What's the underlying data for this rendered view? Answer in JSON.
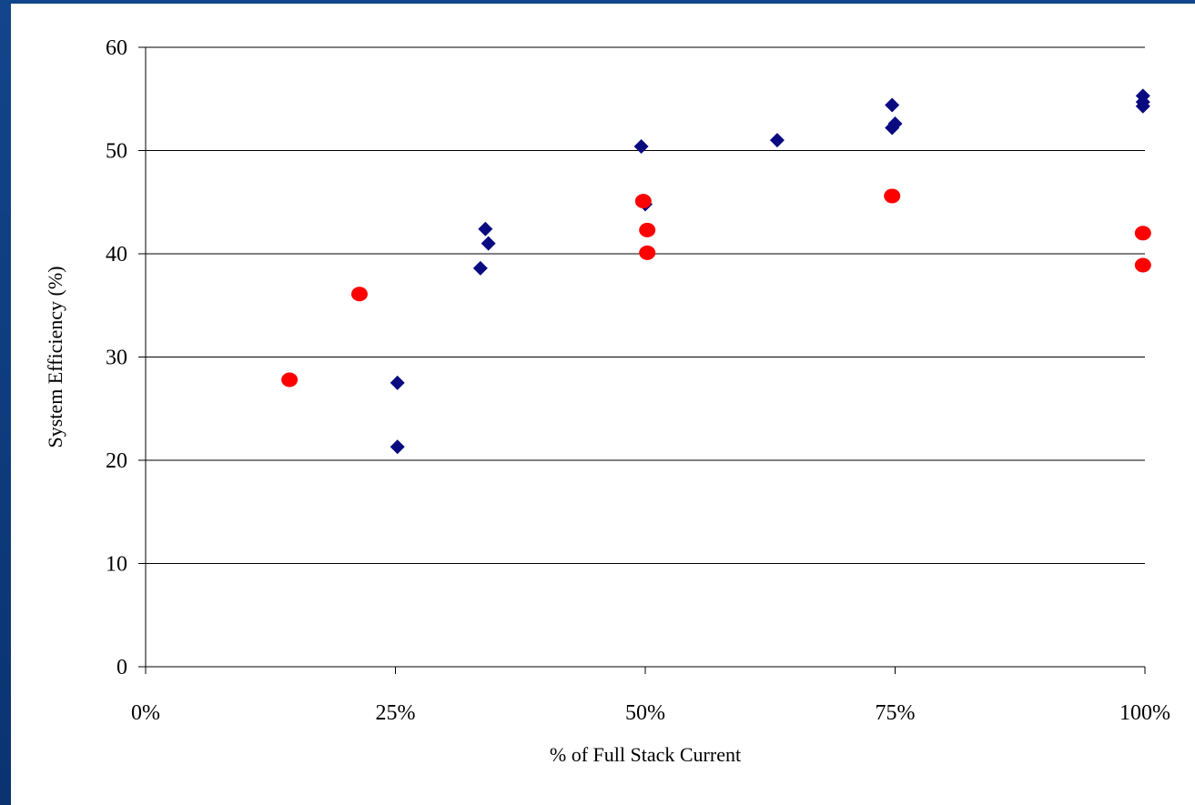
{
  "chart_data": {
    "type": "scatter",
    "title": "",
    "xlabel": "% of Full Stack Current",
    "ylabel": "System Efficiency (%)",
    "xlim": [
      0,
      100
    ],
    "ylim": [
      0,
      60
    ],
    "x_ticks": [
      0,
      25,
      50,
      75,
      100
    ],
    "x_tick_labels": [
      "0%",
      "25%",
      "50%",
      "75%",
      "100%"
    ],
    "y_ticks": [
      0,
      10,
      20,
      30,
      40,
      50,
      60
    ],
    "y_tick_labels": [
      "0",
      "10",
      "20",
      "30",
      "40",
      "50",
      "60"
    ],
    "grid": "horizontal",
    "legend": "none",
    "series": [
      {
        "marker": "diamond",
        "color": "#0a0a80",
        "points": [
          [
            25.2,
            27.5
          ],
          [
            25.2,
            21.3
          ],
          [
            33.5,
            38.6
          ],
          [
            34.0,
            42.4
          ],
          [
            34.3,
            41.0
          ],
          [
            49.6,
            50.4
          ],
          [
            50.0,
            44.8
          ],
          [
            63.2,
            51.0
          ],
          [
            74.7,
            54.4
          ],
          [
            74.7,
            52.2
          ],
          [
            75.0,
            52.6
          ],
          [
            99.8,
            55.3
          ],
          [
            99.8,
            54.7
          ],
          [
            99.8,
            54.3
          ]
        ]
      },
      {
        "marker": "circle",
        "color": "#ff0000",
        "points": [
          [
            14.4,
            27.8
          ],
          [
            21.4,
            36.1
          ],
          [
            49.8,
            45.1
          ],
          [
            50.2,
            42.3
          ],
          [
            50.2,
            40.1
          ],
          [
            74.7,
            45.6
          ],
          [
            99.8,
            42.0
          ],
          [
            99.8,
            38.9
          ]
        ]
      }
    ]
  }
}
